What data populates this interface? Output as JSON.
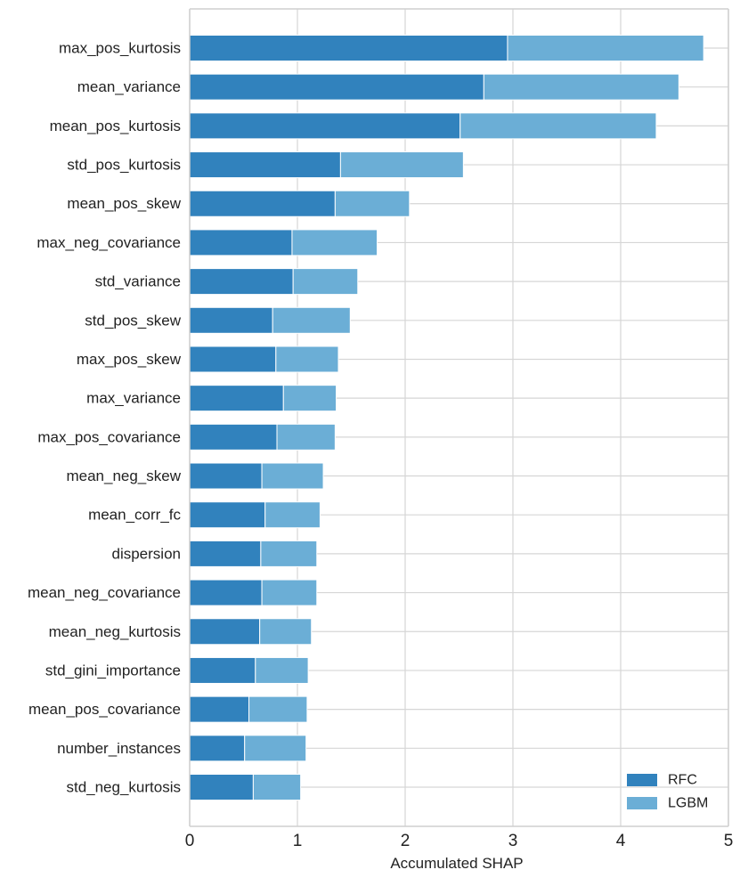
{
  "chart_data": {
    "type": "bar",
    "orientation": "horizontal",
    "stacked": true,
    "title": "",
    "xlabel": "Accumulated SHAP",
    "ylabel": "",
    "xlim": [
      0,
      5
    ],
    "xticks": [
      0,
      1,
      2,
      3,
      4,
      5
    ],
    "grid": true,
    "legend_position": "bottom-right",
    "categories": [
      "max_pos_kurtosis",
      "mean_variance",
      "mean_pos_kurtosis",
      "std_pos_kurtosis",
      "mean_pos_skew",
      "max_neg_covariance",
      "std_variance",
      "std_pos_skew",
      "max_pos_skew",
      "max_variance",
      "max_pos_covariance",
      "mean_neg_skew",
      "mean_corr_fc",
      "dispersion",
      "mean_neg_covariance",
      "mean_neg_kurtosis",
      "std_gini_importance",
      "mean_pos_covariance",
      "number_instances",
      "std_neg_kurtosis"
    ],
    "series": [
      {
        "name": "RFC",
        "color": "#3182bd",
        "values": [
          2.95,
          2.73,
          2.51,
          1.4,
          1.35,
          0.95,
          0.96,
          0.77,
          0.8,
          0.87,
          0.81,
          0.67,
          0.7,
          0.66,
          0.67,
          0.65,
          0.61,
          0.55,
          0.51,
          0.59
        ]
      },
      {
        "name": "LGBM",
        "color": "#6baed6",
        "values": [
          1.82,
          1.81,
          1.82,
          1.14,
          0.69,
          0.79,
          0.6,
          0.72,
          0.58,
          0.49,
          0.54,
          0.57,
          0.51,
          0.52,
          0.51,
          0.48,
          0.49,
          0.54,
          0.57,
          0.44
        ]
      }
    ]
  }
}
